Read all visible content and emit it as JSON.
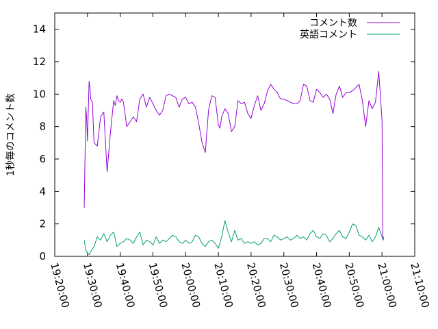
{
  "chart_data": {
    "type": "line",
    "ylabel": "1秒毎のコメント数",
    "xlabel": "",
    "ylim": [
      0,
      15
    ],
    "yticks": [
      0,
      2,
      4,
      6,
      8,
      10,
      12,
      14
    ],
    "xlim": [
      "19:20:00",
      "21:10:00"
    ],
    "xticks": [
      "19:20:00",
      "19:30:00",
      "19:40:00",
      "19:50:00",
      "20:00:00",
      "20:10:00",
      "20:20:00",
      "20:30:00",
      "20:40:00",
      "20:50:00",
      "21:00:00",
      "21:10:00"
    ],
    "legend_position": "top-right",
    "grid": false,
    "series": [
      {
        "name": "コメント数",
        "color": "#9400d3",
        "x": [
          "19:29:00",
          "19:29:15",
          "19:29:30",
          "19:29:45",
          "19:30:00",
          "19:30:15",
          "19:30:30",
          "19:30:45",
          "19:31:00",
          "19:31:30",
          "19:32:00",
          "19:32:30",
          "19:33:00",
          "19:34:00",
          "19:35:00",
          "19:36:00",
          "19:37:00",
          "19:38:00",
          "19:38:30",
          "19:39:00",
          "19:39:30",
          "19:40:00",
          "19:40:30",
          "19:41:00",
          "19:42:00",
          "19:43:00",
          "19:44:00",
          "19:45:00",
          "19:46:00",
          "19:47:00",
          "19:48:00",
          "19:49:00",
          "19:50:00",
          "19:51:00",
          "19:52:00",
          "19:53:00",
          "19:54:00",
          "19:55:00",
          "19:56:00",
          "19:57:00",
          "19:58:00",
          "19:59:00",
          "20:00:00",
          "20:01:00",
          "20:02:00",
          "20:03:00",
          "20:04:00",
          "20:05:00",
          "20:06:00",
          "20:07:00",
          "20:08:00",
          "20:09:00",
          "20:10:00",
          "20:10:30",
          "20:11:00",
          "20:12:00",
          "20:13:00",
          "20:14:00",
          "20:15:00",
          "20:16:00",
          "20:17:00",
          "20:18:00",
          "20:19:00",
          "20:20:00",
          "20:21:00",
          "20:22:00",
          "20:23:00",
          "20:24:00",
          "20:25:00",
          "20:26:00",
          "20:27:00",
          "20:28:00",
          "20:29:00",
          "20:30:00",
          "20:31:00",
          "20:32:00",
          "20:33:00",
          "20:34:00",
          "20:35:00",
          "20:36:00",
          "20:37:00",
          "20:38:00",
          "20:39:00",
          "20:40:00",
          "20:41:00",
          "20:42:00",
          "20:43:00",
          "20:44:00",
          "20:45:00",
          "20:46:00",
          "20:47:00",
          "20:48:00",
          "20:49:00",
          "20:50:00",
          "20:51:00",
          "20:52:00",
          "20:53:00",
          "20:54:00",
          "20:55:00",
          "20:56:00",
          "20:57:00",
          "20:58:00",
          "20:59:00",
          "21:00:00",
          "21:00:15",
          "21:00:30"
        ],
        "y": [
          3.0,
          6.0,
          9.2,
          8.5,
          7.1,
          9.0,
          10.8,
          10.4,
          9.7,
          9.5,
          7.0,
          6.9,
          6.8,
          8.6,
          8.9,
          5.2,
          7.6,
          9.6,
          9.3,
          9.9,
          9.6,
          9.5,
          9.7,
          9.5,
          8.0,
          8.3,
          8.6,
          8.3,
          9.7,
          10.0,
          9.2,
          9.8,
          9.4,
          9.0,
          8.7,
          9.0,
          9.9,
          10.0,
          9.9,
          9.8,
          9.2,
          9.7,
          9.8,
          9.4,
          9.5,
          9.2,
          8.2,
          7.0,
          6.4,
          9.0,
          9.9,
          9.8,
          8.1,
          7.9,
          8.6,
          9.1,
          8.8,
          7.7,
          8.0,
          9.6,
          9.4,
          9.5,
          8.8,
          8.5,
          9.3,
          9.9,
          9.0,
          9.4,
          10.2,
          10.6,
          10.3,
          10.1,
          9.7,
          9.7,
          9.6,
          9.5,
          9.4,
          9.4,
          9.6,
          10.6,
          10.5,
          9.6,
          9.5,
          10.3,
          10.1,
          9.8,
          10.0,
          9.7,
          8.8,
          10.0,
          10.5,
          9.8,
          10.1,
          10.1,
          10.2,
          10.4,
          10.6,
          9.6,
          8.0,
          9.6,
          9.1,
          9.5,
          11.4,
          8.4,
          1.0,
          1.2
        ]
      },
      {
        "name": "英語コメント",
        "color": "#009e73",
        "x": [
          "19:29:00",
          "19:29:30",
          "19:30:00",
          "19:30:30",
          "19:31:00",
          "19:32:00",
          "19:33:00",
          "19:34:00",
          "19:35:00",
          "19:36:00",
          "19:37:00",
          "19:38:00",
          "19:39:00",
          "19:40:00",
          "19:41:00",
          "19:42:00",
          "19:43:00",
          "19:44:00",
          "19:45:00",
          "19:46:00",
          "19:47:00",
          "19:48:00",
          "19:49:00",
          "19:50:00",
          "19:51:00",
          "19:52:00",
          "19:53:00",
          "19:54:00",
          "19:55:00",
          "19:56:00",
          "19:57:00",
          "19:58:00",
          "19:59:00",
          "20:00:00",
          "20:01:00",
          "20:02:00",
          "20:03:00",
          "20:04:00",
          "20:05:00",
          "20:06:00",
          "20:07:00",
          "20:08:00",
          "20:09:00",
          "20:10:00",
          "20:11:00",
          "20:12:00",
          "20:13:00",
          "20:14:00",
          "20:15:00",
          "20:16:00",
          "20:17:00",
          "20:18:00",
          "20:19:00",
          "20:20:00",
          "20:21:00",
          "20:22:00",
          "20:23:00",
          "20:24:00",
          "20:25:00",
          "20:26:00",
          "20:27:00",
          "20:28:00",
          "20:29:00",
          "20:30:00",
          "20:31:00",
          "20:32:00",
          "20:33:00",
          "20:34:00",
          "20:35:00",
          "20:36:00",
          "20:37:00",
          "20:38:00",
          "20:39:00",
          "20:40:00",
          "20:41:00",
          "20:42:00",
          "20:43:00",
          "20:44:00",
          "20:45:00",
          "20:46:00",
          "20:47:00",
          "20:48:00",
          "20:49:00",
          "20:50:00",
          "20:51:00",
          "20:52:00",
          "20:53:00",
          "20:54:00",
          "20:55:00",
          "20:56:00",
          "20:57:00",
          "20:58:00",
          "20:59:00",
          "21:00:00",
          "21:00:15",
          "21:00:30"
        ],
        "y": [
          1.0,
          0.4,
          0.2,
          0.1,
          0.3,
          0.6,
          1.2,
          1.0,
          1.4,
          0.9,
          1.3,
          1.5,
          0.6,
          0.8,
          0.9,
          1.1,
          1.0,
          0.8,
          1.2,
          1.5,
          0.7,
          1.0,
          0.9,
          0.7,
          1.2,
          0.8,
          1.0,
          0.9,
          1.1,
          1.3,
          1.2,
          0.9,
          0.8,
          1.0,
          0.8,
          0.9,
          1.3,
          1.2,
          0.8,
          0.6,
          0.9,
          1.0,
          0.8,
          0.5,
          1.2,
          2.2,
          1.5,
          0.9,
          1.6,
          1.0,
          1.1,
          0.8,
          0.9,
          0.8,
          0.9,
          0.7,
          0.8,
          1.1,
          1.1,
          0.9,
          1.3,
          1.2,
          1.0,
          1.1,
          1.2,
          1.0,
          1.1,
          1.3,
          1.1,
          1.2,
          1.0,
          1.4,
          1.6,
          1.2,
          1.1,
          1.4,
          1.3,
          0.9,
          1.1,
          1.4,
          1.6,
          1.2,
          1.1,
          1.5,
          2.0,
          1.9,
          1.3,
          1.2,
          1.0,
          1.3,
          0.9,
          1.2,
          1.8,
          1.2,
          1.1,
          1.0
        ]
      }
    ]
  }
}
